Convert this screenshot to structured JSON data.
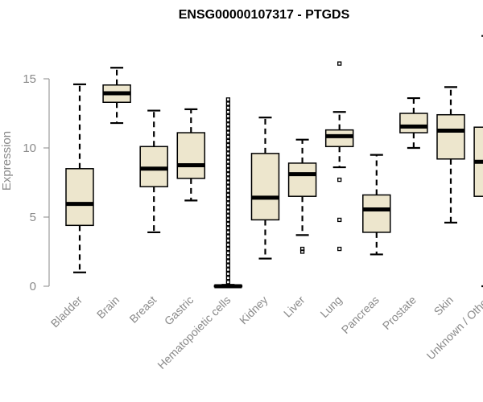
{
  "chart_data": {
    "type": "boxplot",
    "title": "ENSG00000107317 - PTGDS",
    "xlabel": "",
    "ylabel": "Expression",
    "ylim": [
      0,
      18.5
    ],
    "yticks": [
      0,
      5,
      10,
      15
    ],
    "grid": false,
    "box_color": "#ede6cd",
    "categories": [
      "Bladder",
      "Brain",
      "Breast",
      "Gastric",
      "Hematopoietic cells",
      "Kidney",
      "Liver",
      "Lung",
      "Pancreas",
      "Prostate",
      "Skin",
      "Unknown / Other"
    ],
    "boxes": [
      {
        "name": "Bladder",
        "whisker_low": 1.0,
        "q1": 4.4,
        "median": 5.95,
        "q3": 8.5,
        "whisker_high": 14.6,
        "outliers": []
      },
      {
        "name": "Brain",
        "whisker_low": 11.8,
        "q1": 13.3,
        "median": 13.95,
        "q3": 14.55,
        "whisker_high": 15.8,
        "outliers": []
      },
      {
        "name": "Breast",
        "whisker_low": 3.9,
        "q1": 7.2,
        "median": 8.5,
        "q3": 10.1,
        "whisker_high": 12.7,
        "outliers": []
      },
      {
        "name": "Gastric",
        "whisker_low": 6.2,
        "q1": 7.8,
        "median": 8.75,
        "q3": 11.1,
        "whisker_high": 12.8,
        "outliers": []
      },
      {
        "name": "Hematopoietic cells",
        "whisker_low": 0.0,
        "q1": 0.0,
        "median": 0.0,
        "q3": 0.05,
        "whisker_high": 0.1,
        "outliers": [
          0.3,
          0.6,
          0.9,
          1.2,
          1.5,
          1.8,
          2.1,
          2.4,
          2.7,
          3.0,
          3.3,
          3.6,
          3.9,
          4.2,
          4.5,
          4.8,
          5.1,
          5.4,
          5.7,
          6.0,
          6.3,
          6.6,
          6.9,
          7.2,
          7.5,
          7.8,
          8.1,
          8.4,
          8.7,
          9.0,
          9.3,
          9.6,
          9.9,
          10.2,
          10.5,
          10.8,
          11.1,
          11.4,
          11.7,
          12.0,
          12.3,
          12.6,
          12.9,
          13.2,
          13.5
        ]
      },
      {
        "name": "Kidney",
        "whisker_low": 2.0,
        "q1": 4.8,
        "median": 6.4,
        "q3": 9.6,
        "whisker_high": 12.2,
        "outliers": []
      },
      {
        "name": "Liver",
        "whisker_low": 3.7,
        "q1": 6.5,
        "median": 8.1,
        "q3": 8.9,
        "whisker_high": 10.6,
        "outliers": [
          2.5,
          2.7
        ]
      },
      {
        "name": "Lung",
        "whisker_low": 8.6,
        "q1": 10.1,
        "median": 10.85,
        "q3": 11.3,
        "whisker_high": 12.6,
        "outliers": [
          16.1,
          7.7,
          4.8,
          2.7
        ]
      },
      {
        "name": "Pancreas",
        "whisker_low": 2.3,
        "q1": 3.9,
        "median": 5.55,
        "q3": 6.6,
        "whisker_high": 9.5,
        "outliers": []
      },
      {
        "name": "Prostate",
        "whisker_low": 10.0,
        "q1": 11.1,
        "median": 11.55,
        "q3": 12.5,
        "whisker_high": 13.6,
        "outliers": []
      },
      {
        "name": "Skin",
        "whisker_low": 4.6,
        "q1": 9.2,
        "median": 11.25,
        "q3": 12.4,
        "whisker_high": 14.4,
        "outliers": []
      },
      {
        "name": "Unknown / Other",
        "whisker_low": 0.0,
        "q1": 6.5,
        "median": 9.0,
        "q3": 11.5,
        "whisker_high": 18.1,
        "outliers": []
      }
    ]
  }
}
